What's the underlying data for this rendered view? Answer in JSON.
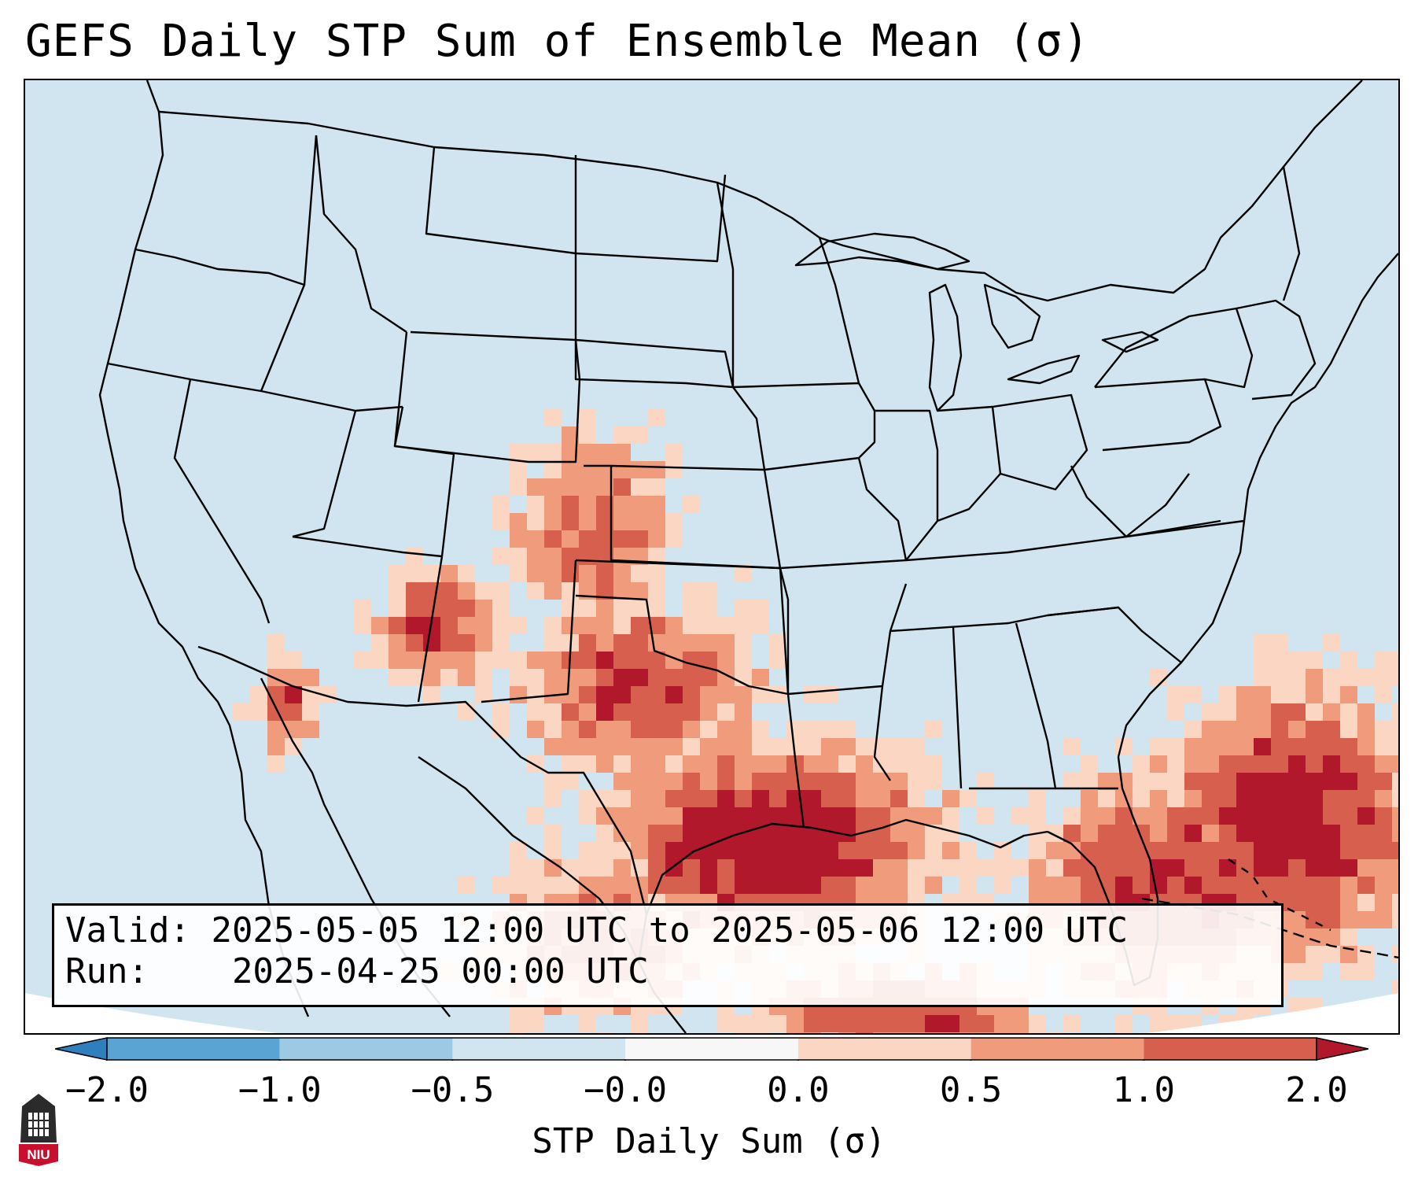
{
  "title": "GEFS Daily STP Sum of Ensemble Mean (σ)",
  "info": {
    "valid_label": "Valid:",
    "valid_value": "2025-05-05 12:00 UTC to 2025-05-06 12:00 UTC",
    "run_label": "Run:",
    "run_value": "2025-04-25 00:00 UTC"
  },
  "colorbar": {
    "title": "STP Daily Sum (σ)",
    "tick_labels": [
      "−2.0",
      "−1.0",
      "−0.5",
      "−0.0",
      "0.0",
      "0.5",
      "1.0",
      "2.0"
    ],
    "bin_colors": [
      "#2f7fbf",
      "#5aa4d4",
      "#9ccae4",
      "#d1e5f0",
      "#f7f7f7",
      "#fbd6c2",
      "#ef9b7c",
      "#d6604d",
      "#b2182b"
    ],
    "extend": "both"
  },
  "map": {
    "projection": "Lambert Conformal (CONUS)",
    "background_color": "#d1e5f0",
    "features": [
      "state-borders",
      "coastlines",
      "country-borders"
    ]
  },
  "logo": {
    "text": "NIU"
  }
}
